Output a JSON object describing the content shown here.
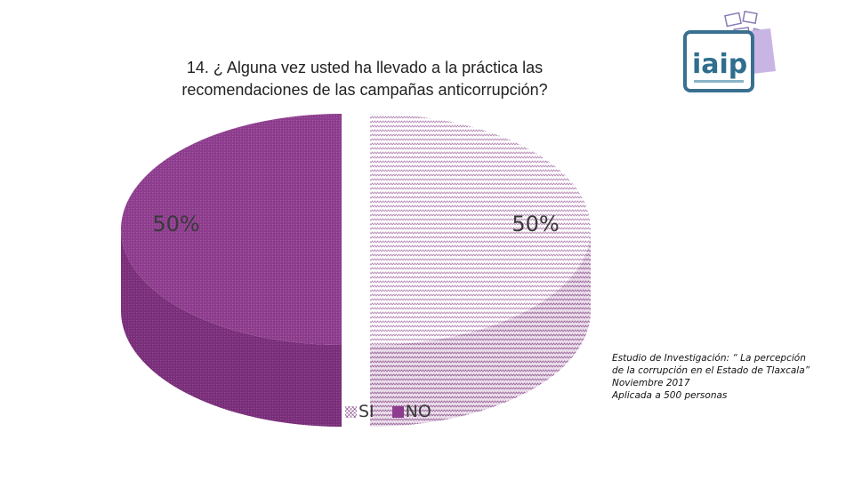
{
  "title": {
    "line1": "14. ¿ Alguna vez usted ha llevado a la práctica las",
    "line2": "recomendaciones de las campañas anticorrupción?"
  },
  "chart_data": {
    "type": "pie",
    "categories": [
      "SI",
      "NO"
    ],
    "values": [
      50,
      50
    ],
    "data_labels": [
      "50%",
      "50%"
    ],
    "colors": [
      "#b68ab6",
      "#8e3d8e"
    ],
    "legend_position": "bottom",
    "style": "3d-exploded"
  },
  "footnote": {
    "line1": "Estudio de Investigación: “ La percepción",
    "line2": "de la corrupción en el Estado de Tlaxcala”",
    "line3": "Noviembre 2017",
    "line4": "Aplicada a 500 personas"
  },
  "logo": {
    "text": "iaip",
    "icon": "iaip-logo-icon"
  }
}
